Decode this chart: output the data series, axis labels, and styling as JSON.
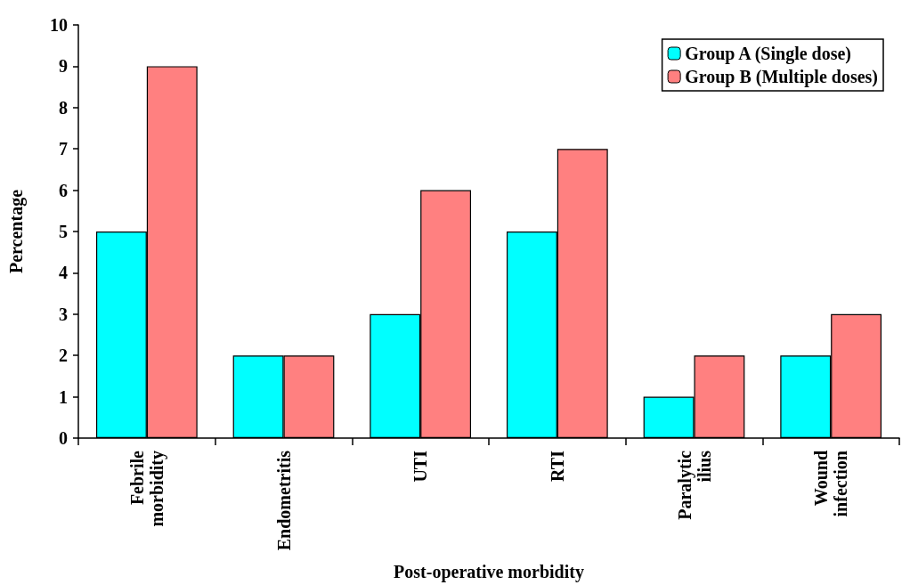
{
  "chart_data": {
    "type": "bar",
    "xlabel": "Post-operative morbidity",
    "ylabel": "Percentage",
    "categories": [
      "Febrile morbidity",
      "Endometritis",
      "UTI",
      "RTI",
      "Paralytic ilius",
      "Wound infection"
    ],
    "series": [
      {
        "name": "Group A (Single dose)",
        "color": "#00ffff",
        "values": [
          5,
          2,
          3,
          5,
          1,
          2
        ]
      },
      {
        "name": "Group B (Multiple doses)",
        "color": "#ff8080",
        "values": [
          9,
          2,
          6,
          7,
          2,
          3
        ]
      }
    ],
    "ylim": [
      0,
      10
    ],
    "yticks": [
      0,
      1,
      2,
      3,
      4,
      5,
      6,
      7,
      8,
      9,
      10
    ],
    "grid": false,
    "legend": "top right"
  }
}
